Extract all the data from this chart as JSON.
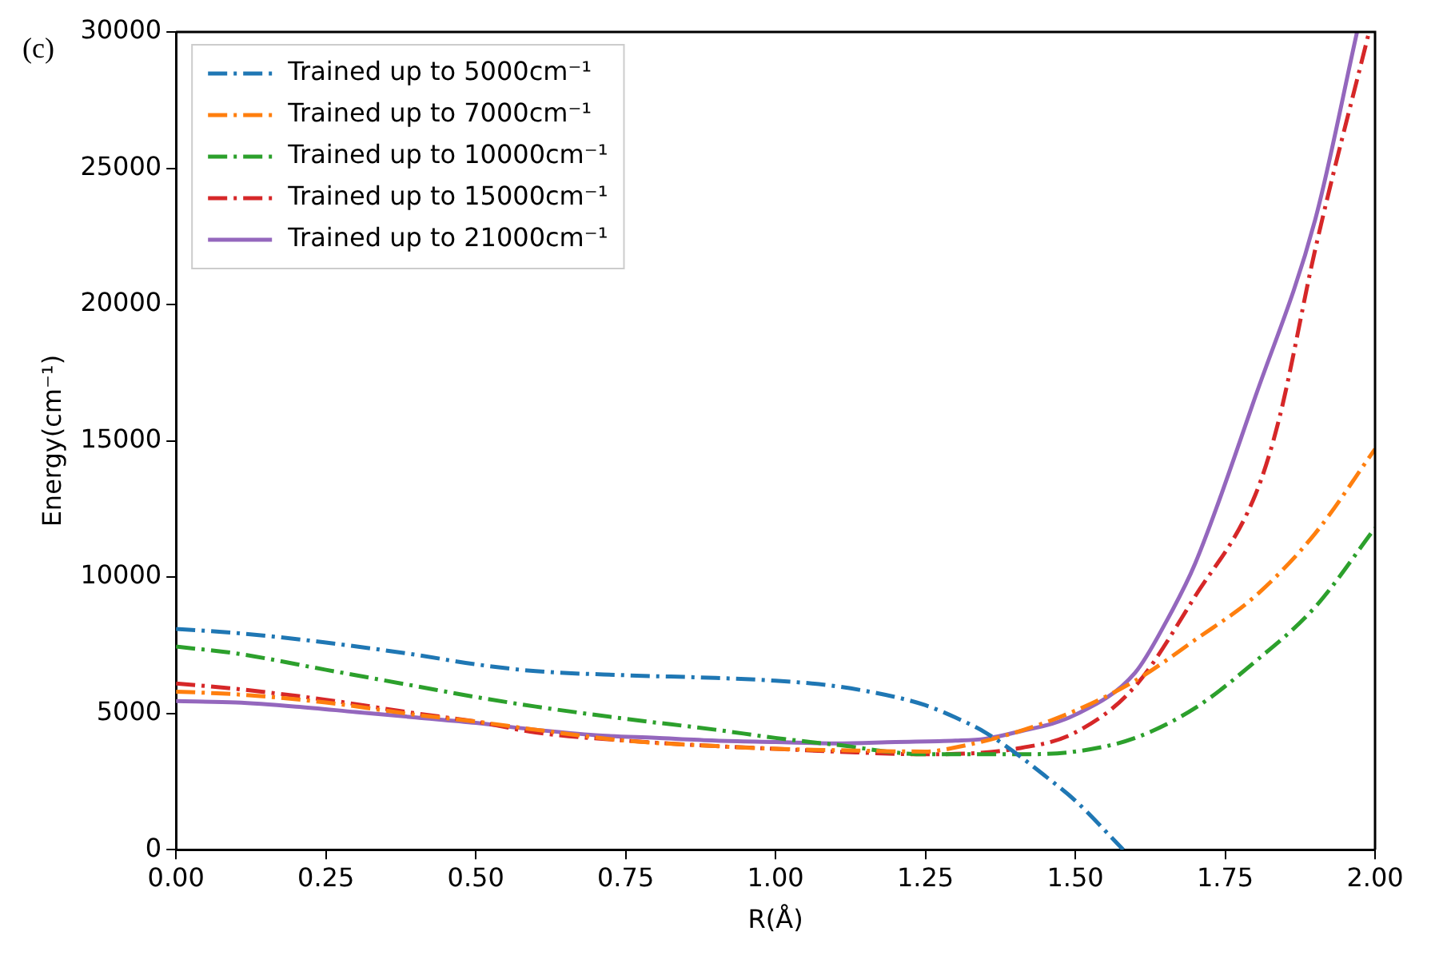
{
  "chart_data": {
    "type": "line",
    "xlabel": "R(Å)",
    "ylabel": "Energy(cm⁻¹)",
    "annotations": [
      "(c)"
    ],
    "xlim": [
      0,
      2
    ],
    "xticks": [
      {
        "value": 0,
        "label": "0.00"
      },
      {
        "value": 0.25,
        "label": "0.25"
      },
      {
        "value": 0.5,
        "label": "0.50"
      },
      {
        "value": 0.75,
        "label": "0.75"
      },
      {
        "value": 1,
        "label": "1.00"
      },
      {
        "value": 1.25,
        "label": "1.25"
      },
      {
        "value": 1.5,
        "label": "1.50"
      },
      {
        "value": 1.75,
        "label": "1.75"
      },
      {
        "value": 2,
        "label": "2.00"
      }
    ],
    "ylim": [
      0,
      30000
    ],
    "yticks": [
      0,
      5000,
      10000,
      15000,
      20000,
      25000,
      30000
    ],
    "grid": false,
    "legend": "top left",
    "marker": "none",
    "series": [
      {
        "name": "Trained up to 5000cm⁻¹",
        "color": "#1f77b4",
        "line_style": "dashdot",
        "x": [
          0,
          0.1,
          0.25,
          0.4,
          0.5,
          0.6,
          0.75,
          0.9,
          1.0,
          1.1,
          1.2,
          1.25,
          1.3,
          1.35,
          1.4,
          1.45,
          1.5,
          1.58
        ],
        "values": [
          8100,
          7950,
          7600,
          7150,
          6800,
          6550,
          6400,
          6300,
          6200,
          6000,
          5600,
          5300,
          4850,
          4300,
          3550,
          2700,
          1800,
          0
        ]
      },
      {
        "name": "Trained up to 7000cm⁻¹",
        "color": "#ff7f0e",
        "line_style": "dashdot",
        "x": [
          0,
          0.1,
          0.25,
          0.4,
          0.5,
          0.6,
          0.75,
          0.9,
          1.0,
          1.1,
          1.25,
          1.3,
          1.4,
          1.5,
          1.6,
          1.7,
          1.8,
          1.9,
          2.0
        ],
        "values": [
          5800,
          5700,
          5400,
          4950,
          4700,
          4400,
          4000,
          3800,
          3700,
          3650,
          3600,
          3750,
          4300,
          5100,
          6200,
          7700,
          9300,
          11600,
          14700
        ]
      },
      {
        "name": "Trained up to 10000cm⁻¹",
        "color": "#2ca02c",
        "line_style": "dashdot",
        "x": [
          0,
          0.1,
          0.25,
          0.4,
          0.5,
          0.6,
          0.75,
          0.9,
          1.0,
          1.1,
          1.25,
          1.4,
          1.5,
          1.6,
          1.7,
          1.8,
          1.9,
          2.0
        ],
        "values": [
          7450,
          7200,
          6600,
          6000,
          5600,
          5250,
          4800,
          4400,
          4100,
          3850,
          3500,
          3500,
          3600,
          4100,
          5200,
          6900,
          8900,
          11800
        ]
      },
      {
        "name": "Trained up to 15000cm⁻¹",
        "color": "#d62728",
        "line_style": "dashdot",
        "x": [
          0,
          0.1,
          0.25,
          0.4,
          0.5,
          0.6,
          0.75,
          0.9,
          1.0,
          1.1,
          1.25,
          1.4,
          1.5,
          1.6,
          1.7,
          1.8,
          1.84,
          1.9,
          1.99
        ],
        "values": [
          6100,
          5900,
          5500,
          5000,
          4700,
          4300,
          4000,
          3800,
          3700,
          3600,
          3500,
          3700,
          4300,
          6000,
          9300,
          13000,
          15800,
          22000,
          30000
        ]
      },
      {
        "name": "Trained up to 21000cm⁻¹",
        "color": "#9467bd",
        "line_style": "solid",
        "x": [
          0,
          0.1,
          0.2,
          0.3,
          0.4,
          0.5,
          0.6,
          0.7,
          0.8,
          0.9,
          1.0,
          1.1,
          1.2,
          1.3,
          1.35,
          1.4,
          1.5,
          1.6,
          1.65,
          1.7,
          1.8,
          1.9,
          1.97
        ],
        "values": [
          5450,
          5400,
          5250,
          5050,
          4850,
          4650,
          4400,
          4200,
          4100,
          4000,
          3950,
          3900,
          3950,
          4000,
          4070,
          4300,
          4950,
          6500,
          8300,
          10500,
          16600,
          23100,
          30000
        ]
      }
    ]
  }
}
